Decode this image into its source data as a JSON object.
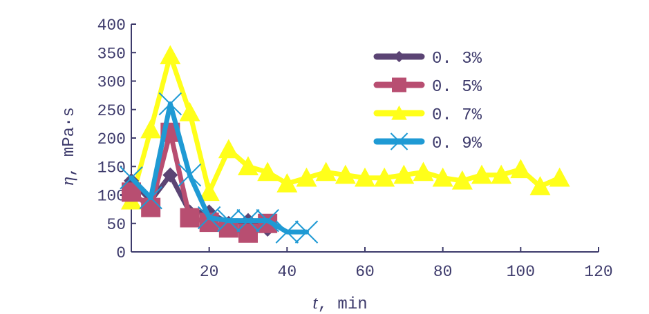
{
  "chart_data": {
    "type": "line",
    "title": "",
    "xlabel": {
      "symbol": "t",
      "unit": ", min"
    },
    "ylabel": {
      "symbol": "η",
      "unit": ", mPa·s"
    },
    "xlim": [
      0,
      120
    ],
    "ylim": [
      0,
      400
    ],
    "xticks": [
      20,
      40,
      60,
      80,
      100,
      120
    ],
    "yticks": [
      0,
      50,
      100,
      150,
      200,
      250,
      300,
      350,
      400
    ],
    "grid": false,
    "legend_position": "top-right",
    "series": [
      {
        "name": "0. 3%",
        "color": "#5b4474",
        "marker": "diamond",
        "x": [
          0,
          5,
          10,
          15,
          20,
          25,
          30,
          35
        ],
        "y": [
          125,
          90,
          135,
          70,
          70,
          50,
          55,
          40
        ]
      },
      {
        "name": "0. 5%",
        "color": "#b84e71",
        "marker": "square",
        "x": [
          0,
          5,
          10,
          15,
          20,
          25,
          30,
          35
        ],
        "y": [
          105,
          78,
          210,
          60,
          52,
          42,
          33,
          50
        ]
      },
      {
        "name": "0. 7%",
        "color": "#ffff1a",
        "marker": "triangle",
        "x": [
          0,
          5,
          10,
          15,
          20,
          25,
          30,
          35,
          40,
          45,
          50,
          55,
          60,
          65,
          70,
          75,
          80,
          85,
          90,
          95,
          100,
          105,
          110
        ],
        "y": [
          90,
          215,
          345,
          245,
          105,
          180,
          150,
          140,
          120,
          130,
          140,
          135,
          130,
          130,
          135,
          140,
          130,
          125,
          135,
          135,
          145,
          115,
          130
        ]
      },
      {
        "name": "0. 9%",
        "color": "#1f9ad4",
        "marker": "x",
        "x": [
          0,
          5,
          10,
          15,
          20,
          25,
          30,
          35,
          40,
          45
        ],
        "y": [
          130,
          95,
          260,
          135,
          60,
          55,
          55,
          55,
          35,
          35
        ]
      }
    ]
  }
}
